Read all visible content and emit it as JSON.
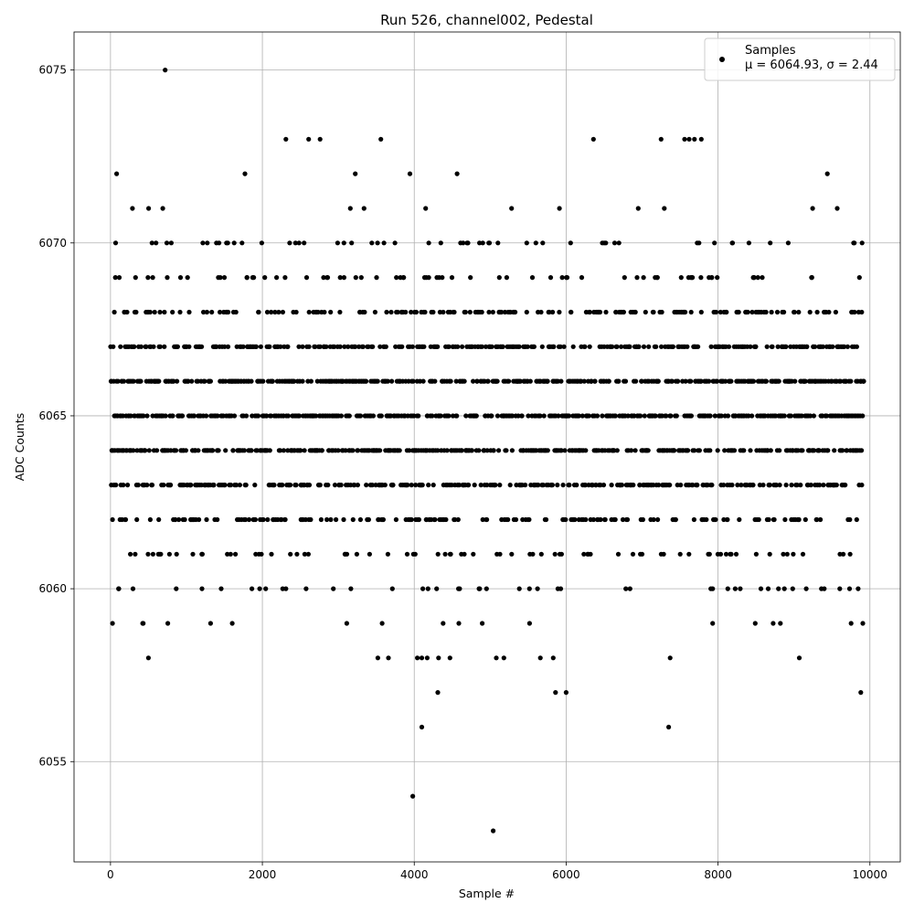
{
  "chart_data": {
    "type": "scatter",
    "title": "Run 526, channel002, Pedestal",
    "xlabel": "Sample #",
    "ylabel": "ADC Counts",
    "xlim": [
      -480,
      10400
    ],
    "ylim": [
      6052.1,
      6076.1
    ],
    "x_ticks": [
      0,
      2000,
      4000,
      6000,
      8000,
      10000
    ],
    "y_ticks": [
      6055,
      6060,
      6065,
      6070,
      6075
    ],
    "grid": true,
    "legend": {
      "position": "top-right",
      "series_label": "Samples",
      "stats_label": "μ = 6064.93, σ = 2.44"
    },
    "series": [
      {
        "name": "Samples",
        "color": "#000000",
        "sample_count": 10000,
        "x_range": [
          0,
          9920
        ],
        "mean": 6064.93,
        "std": 2.44,
        "outliers": [
          {
            "x": 720,
            "y": 6075
          },
          {
            "x": 2310,
            "y": 6073
          },
          {
            "x": 2610,
            "y": 6073
          },
          {
            "x": 2760,
            "y": 6073
          },
          {
            "x": 3560,
            "y": 6073
          },
          {
            "x": 6360,
            "y": 6073
          },
          {
            "x": 7250,
            "y": 6073
          },
          {
            "x": 7560,
            "y": 6073
          },
          {
            "x": 7620,
            "y": 6073
          },
          {
            "x": 7690,
            "y": 6073
          },
          {
            "x": 7780,
            "y": 6073
          },
          {
            "x": 500,
            "y": 6058
          },
          {
            "x": 3520,
            "y": 6058
          },
          {
            "x": 3660,
            "y": 6058
          },
          {
            "x": 4040,
            "y": 6058
          },
          {
            "x": 4100,
            "y": 6058
          },
          {
            "x": 4170,
            "y": 6058
          },
          {
            "x": 4320,
            "y": 6058
          },
          {
            "x": 4470,
            "y": 6058
          },
          {
            "x": 5080,
            "y": 6058
          },
          {
            "x": 5180,
            "y": 6058
          },
          {
            "x": 5660,
            "y": 6058
          },
          {
            "x": 5830,
            "y": 6058
          },
          {
            "x": 7370,
            "y": 6058
          },
          {
            "x": 9070,
            "y": 6058
          },
          {
            "x": 4310,
            "y": 6057
          },
          {
            "x": 5860,
            "y": 6057
          },
          {
            "x": 6000,
            "y": 6057
          },
          {
            "x": 9880,
            "y": 6057
          },
          {
            "x": 4100,
            "y": 6056
          },
          {
            "x": 7350,
            "y": 6056
          },
          {
            "x": 3980,
            "y": 6054
          },
          {
            "x": 5040,
            "y": 6053
          }
        ]
      }
    ]
  }
}
